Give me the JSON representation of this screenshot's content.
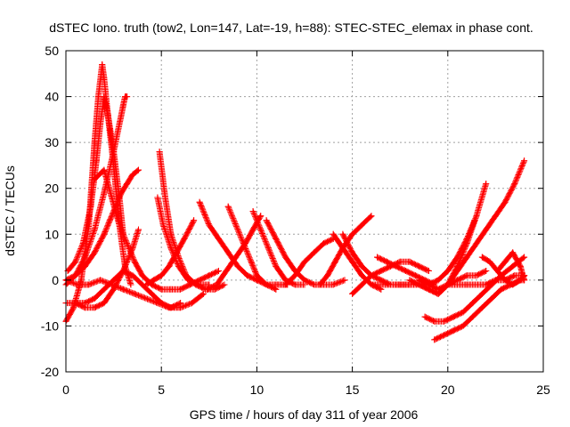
{
  "chart_data": {
    "type": "scatter",
    "title": "dSTEC Iono. truth (tow2, Lon=147, Lat=-19, h=88): STEC-STEC_elemax in phase cont.",
    "xlabel": "GPS time / hours of day 311 of year 2006",
    "ylabel": "dSTEC  / TECUs",
    "xlim": [
      0,
      25
    ],
    "ylim": [
      -20,
      50
    ],
    "xticks": [
      0,
      5,
      10,
      15,
      20,
      25
    ],
    "yticks": [
      -20,
      -10,
      0,
      10,
      20,
      30,
      40,
      50
    ],
    "grid": true,
    "marker": "plus",
    "colors": {
      "series": "#ff0000",
      "grid": "#a0a0a0",
      "frame": "#000000"
    },
    "series": [
      {
        "x": [
          0,
          0.4,
          0.8,
          1.2,
          1.5,
          1.7,
          1.9,
          2.0,
          2.2,
          2.5,
          2.8,
          3.1,
          3.4
        ],
        "y": [
          -9,
          -6,
          0,
          12,
          30,
          40,
          47,
          44,
          36,
          25,
          12,
          3,
          -1
        ]
      },
      {
        "x": [
          0.1,
          0.5,
          0.9,
          1.3,
          1.6,
          1.8,
          2.0,
          2.2,
          2.5,
          2.8,
          3.0
        ],
        "y": [
          2,
          4,
          8,
          16,
          26,
          34,
          40,
          36,
          28,
          18,
          10
        ]
      },
      {
        "x": [
          0,
          0.5,
          1.0,
          1.5,
          2.0,
          2.5,
          2.8,
          3.0,
          3.1,
          3.2
        ],
        "y": [
          -1,
          1,
          5,
          11,
          19,
          28,
          34,
          38,
          40,
          40
        ]
      },
      {
        "x": [
          0,
          0.5,
          1.0,
          1.5,
          2.0,
          2.3,
          2.6,
          2.9,
          3.2,
          3.5,
          3.8
        ],
        "y": [
          0,
          1,
          3,
          6,
          10,
          13,
          16,
          19,
          21,
          23,
          24
        ]
      },
      {
        "x": [
          1.5,
          2.0,
          2.4,
          2.8,
          3.2,
          3.6,
          4.0,
          4.5,
          5.0,
          5.5,
          6.0,
          6.5,
          7.0,
          7.5,
          8.0
        ],
        "y": [
          22,
          24,
          18,
          12,
          8,
          4,
          1,
          -1,
          -2,
          -2,
          -2,
          -1,
          0,
          1,
          2
        ]
      },
      {
        "x": [
          0.5,
          1.0,
          1.5,
          2.0,
          2.5,
          3.0,
          3.5,
          4.0,
          4.5,
          5.0,
          5.5,
          6.0
        ],
        "y": [
          -5,
          -5,
          -4,
          -2,
          0,
          2,
          1,
          -1,
          -3,
          -5,
          -6,
          -5
        ]
      },
      {
        "x": [
          0,
          0.5,
          1.0,
          1.5,
          2.0,
          2.5,
          3.0,
          3.5,
          3.8
        ],
        "y": [
          -5,
          -5,
          -6,
          -6,
          -5,
          -2,
          2,
          7,
          11
        ]
      },
      {
        "x": [
          0,
          0.6,
          1.2,
          1.8,
          2.4,
          3.0,
          3.6,
          4.2,
          4.8,
          5.4,
          6.0,
          6.6,
          7.2
        ],
        "y": [
          0,
          -1,
          -1,
          0,
          -1,
          -2,
          -3,
          -4,
          -5,
          -6,
          -6,
          -5,
          -3
        ]
      },
      {
        "x": [
          4.9,
          5.2,
          5.5,
          5.9,
          6.3,
          6.8,
          7.3,
          7.8,
          8.3
        ],
        "y": [
          28,
          18,
          10,
          5,
          1,
          -1,
          -2,
          -2,
          -1
        ]
      },
      {
        "x": [
          4.8,
          5.1,
          5.5,
          5.9,
          6.4,
          7.0,
          7.5
        ],
        "y": [
          18,
          12,
          7,
          3,
          0,
          -1,
          -1
        ]
      },
      {
        "x": [
          4.2,
          4.6,
          5.0,
          5.4,
          5.8,
          6.2,
          6.7
        ],
        "y": [
          -1,
          0,
          1,
          3,
          6,
          9,
          13
        ]
      },
      {
        "x": [
          7.0,
          7.5,
          8.0,
          8.5,
          9.0,
          9.5,
          10.0,
          10.5,
          11.0,
          11.6
        ],
        "y": [
          17,
          12,
          9,
          6,
          3,
          1,
          0,
          -1,
          -1,
          -1
        ]
      },
      {
        "x": [
          8.5,
          8.9,
          9.3,
          9.7,
          10.0,
          10.5,
          11.0
        ],
        "y": [
          16,
          12,
          8,
          4,
          1,
          -1,
          -2
        ]
      },
      {
        "x": [
          7.4,
          7.9,
          8.4,
          8.9,
          9.4,
          9.8,
          10.2
        ],
        "y": [
          -2,
          -1,
          2,
          5,
          8,
          11,
          14
        ]
      },
      {
        "x": [
          9.8,
          10.2,
          10.6,
          11.0,
          11.5,
          12.0,
          12.5
        ],
        "y": [
          15,
          11,
          7,
          3,
          0,
          -1,
          -1
        ]
      },
      {
        "x": [
          10.5,
          11.0,
          11.5,
          12.0,
          12.5,
          13.0,
          13.5,
          14.0,
          14.6
        ],
        "y": [
          13,
          9,
          5,
          2,
          0,
          -1,
          -1,
          -1,
          0
        ]
      },
      {
        "x": [
          11.5,
          12.0,
          12.5,
          13.0,
          13.5,
          14.0
        ],
        "y": [
          -1,
          1,
          4,
          6,
          8,
          9
        ]
      },
      {
        "x": [
          13.3,
          13.7,
          14.1,
          14.5,
          15.0,
          15.5,
          16.0
        ],
        "y": [
          -1,
          1,
          4,
          7,
          10,
          12,
          14
        ]
      },
      {
        "x": [
          14.0,
          14.5,
          15.0,
          15.5,
          16.0,
          16.5
        ],
        "y": [
          10,
          7,
          4,
          1,
          -1,
          -2
        ]
      },
      {
        "x": [
          14.5,
          15.0,
          15.5,
          16.0,
          16.5,
          17.0,
          17.5,
          18.0
        ],
        "y": [
          10,
          6,
          3,
          1,
          0,
          -1,
          -1,
          -1
        ]
      },
      {
        "x": [
          15.0,
          15.5,
          16.0,
          16.5,
          17.0,
          17.5,
          18.0,
          18.5,
          19.0
        ],
        "y": [
          -3,
          -1,
          1,
          2,
          3,
          4,
          4,
          3,
          2
        ]
      },
      {
        "x": [
          16.3,
          16.8,
          17.3,
          17.8,
          18.3,
          18.8,
          19.3
        ],
        "y": [
          5,
          4,
          3,
          2,
          1,
          0,
          -1
        ]
      },
      {
        "x": [
          16.0,
          17.0,
          18.0,
          19.0,
          19.5,
          20.0,
          20.5,
          21.0,
          21.5,
          22.0
        ],
        "y": [
          -1,
          -1,
          -1,
          -1,
          -2,
          -1,
          0,
          1,
          1,
          2
        ]
      },
      {
        "x": [
          18.0,
          18.5,
          19.0,
          19.5,
          20.0,
          20.5,
          21.0,
          21.5,
          22.0,
          22.5,
          23.0,
          23.5,
          24.0
        ],
        "y": [
          0,
          -1,
          -2,
          -3,
          -1,
          2,
          5,
          8,
          11,
          14,
          17,
          21,
          26
        ]
      },
      {
        "x": [
          18.5,
          19.0,
          19.5,
          20.0,
          20.5,
          21.0,
          21.5,
          22.0
        ],
        "y": [
          -1,
          -2,
          -3,
          -1,
          3,
          8,
          14,
          21
        ]
      },
      {
        "x": [
          18.5,
          19.0,
          19.5,
          20.0,
          20.5,
          21.0,
          21.4
        ],
        "y": [
          0,
          -1,
          0,
          2,
          5,
          9,
          13
        ]
      },
      {
        "x": [
          19.3,
          19.8,
          20.3,
          20.8,
          21.3,
          21.8,
          22.3,
          22.8,
          23.3,
          23.8,
          24.0
        ],
        "y": [
          -13,
          -12,
          -11,
          -10,
          -8,
          -6,
          -4,
          -2,
          -1,
          0,
          0
        ]
      },
      {
        "x": [
          18.8,
          19.3,
          19.8,
          20.3,
          20.8,
          21.3,
          21.8,
          22.3,
          22.8,
          23.4,
          24.0
        ],
        "y": [
          -8,
          -9,
          -9,
          -8,
          -7,
          -5,
          -3,
          -1,
          1,
          3,
          5
        ]
      },
      {
        "x": [
          20.0,
          20.5,
          21.0,
          21.5,
          22.0,
          22.5,
          23.0,
          23.5,
          24.0
        ],
        "y": [
          -1,
          -1,
          -1,
          -1,
          -1,
          0,
          0,
          1,
          1
        ]
      },
      {
        "x": [
          21.8,
          22.2,
          22.6,
          23.0,
          23.4,
          23.8,
          24.0
        ],
        "y": [
          5,
          4,
          2,
          0,
          -1,
          0,
          1
        ]
      },
      {
        "x": [
          22.6,
          23.0,
          23.4,
          23.8,
          24.0
        ],
        "y": [
          2,
          4,
          6,
          3,
          0
        ]
      }
    ]
  }
}
